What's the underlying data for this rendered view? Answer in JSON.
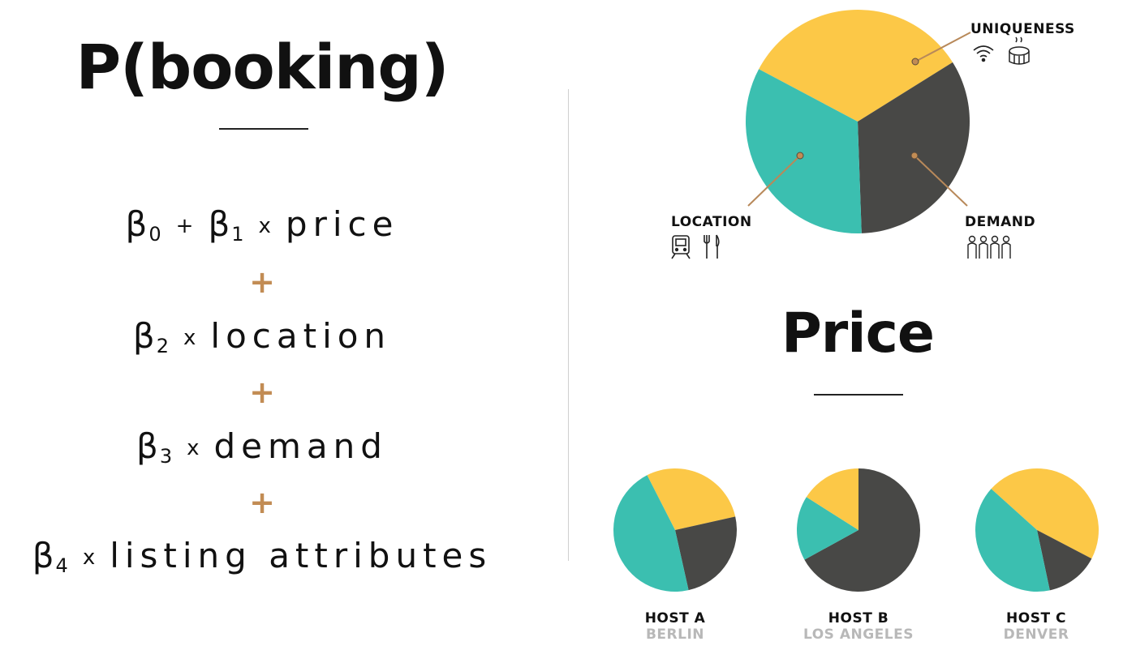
{
  "left": {
    "title": "P(booking)",
    "terms": [
      {
        "beta": "β",
        "sub0": "0",
        "op0": "+",
        "beta1": "β",
        "sub1": "1",
        "op1": "x",
        "word": "price"
      },
      {
        "beta": "β",
        "sub": "2",
        "op": "x",
        "word": "location"
      },
      {
        "beta": "β",
        "sub": "3",
        "op": "x",
        "word": "demand"
      },
      {
        "beta": "β",
        "sub": "4",
        "op": "x",
        "word": "listing attributes"
      }
    ],
    "plus": "+"
  },
  "right": {
    "labels": {
      "uniqueness": "UNIQUENESS",
      "location": "LOCATION",
      "demand": "DEMAND"
    },
    "icons": {
      "uniqueness": [
        "wifi-icon",
        "hot-tub-icon"
      ],
      "location": [
        "train-icon",
        "utensils-icon"
      ],
      "demand": [
        "people-icon"
      ]
    },
    "price_title": "Price",
    "hosts": [
      {
        "name": "HOST A",
        "city": "BERLIN"
      },
      {
        "name": "HOST B",
        "city": "LOS ANGELES"
      },
      {
        "name": "HOST C",
        "city": "DENVER"
      }
    ]
  },
  "colors": {
    "uniqueness": "#fcc847",
    "location": "#3bbfb0",
    "demand": "#484846",
    "accent": "#c28c54"
  },
  "chart_data": [
    {
      "type": "pie",
      "title": "",
      "slices": [
        {
          "name": "UNIQUENESS",
          "value": 33.3
        },
        {
          "name": "DEMAND",
          "value": 33.3
        },
        {
          "name": "LOCATION",
          "value": 33.3
        }
      ]
    },
    {
      "type": "pie",
      "title": "HOST A",
      "slices": [
        {
          "name": "UNIQUENESS",
          "value": 29
        },
        {
          "name": "DEMAND",
          "value": 25
        },
        {
          "name": "LOCATION",
          "value": 46
        }
      ]
    },
    {
      "type": "pie",
      "title": "HOST B",
      "slices": [
        {
          "name": "DEMAND",
          "value": 67
        },
        {
          "name": "LOCATION",
          "value": 17
        },
        {
          "name": "UNIQUENESS",
          "value": 16
        }
      ]
    },
    {
      "type": "pie",
      "title": "HOST C",
      "slices": [
        {
          "name": "UNIQUENESS",
          "value": 46
        },
        {
          "name": "DEMAND",
          "value": 14
        },
        {
          "name": "LOCATION",
          "value": 40
        }
      ]
    }
  ]
}
